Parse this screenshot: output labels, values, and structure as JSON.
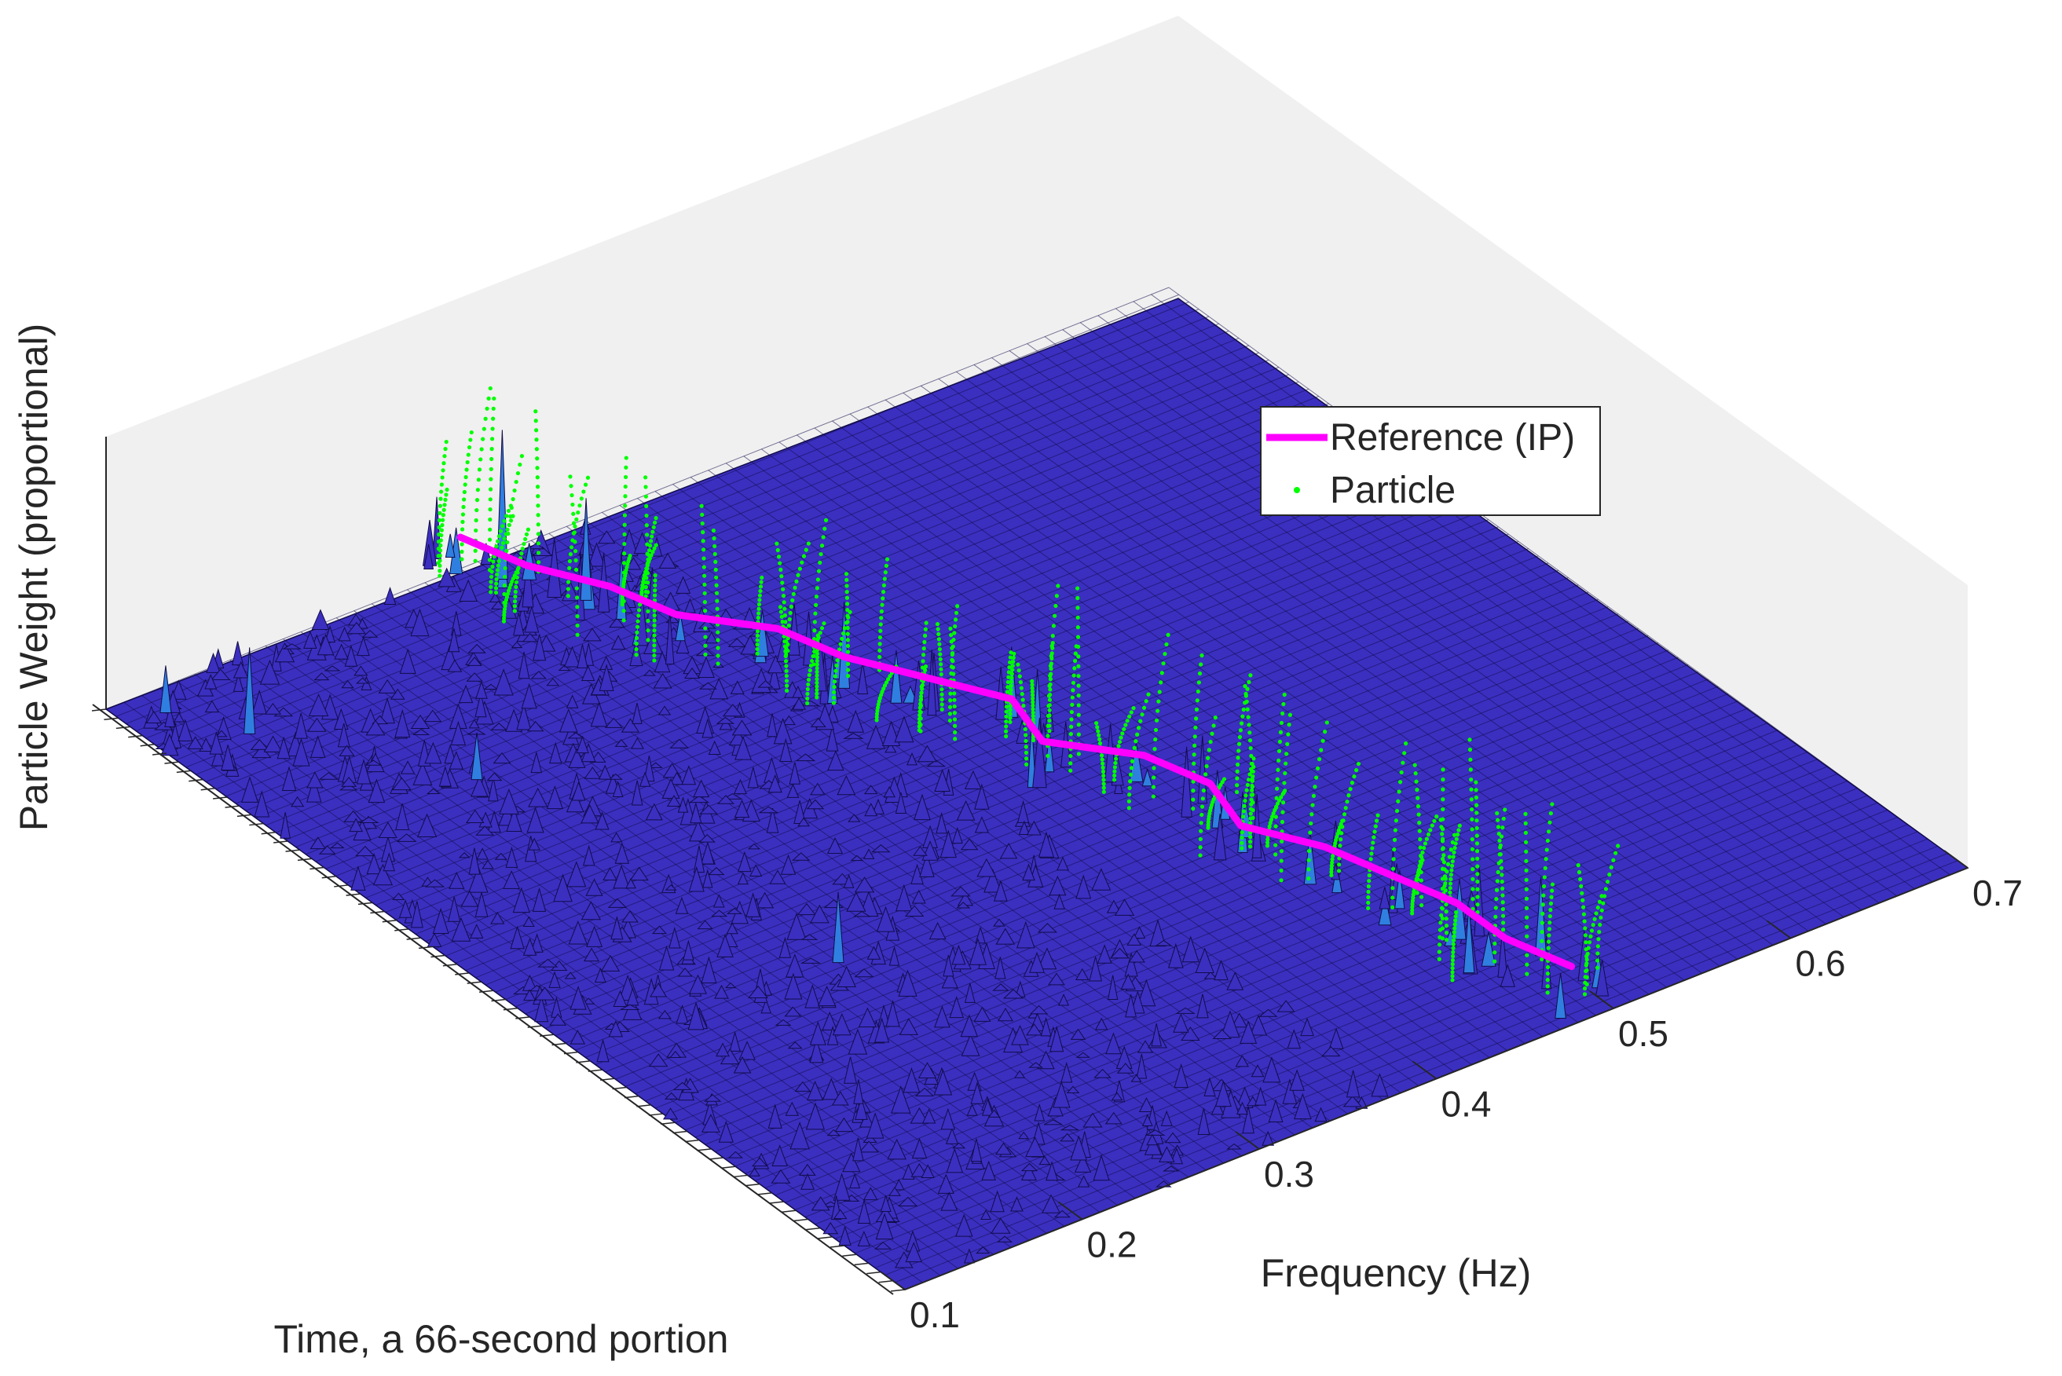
{
  "chart_data": {
    "type": "surface",
    "view": "3d",
    "xlabel": "Frequency (Hz)",
    "ylabel": "Time, a 66-second portion",
    "zlabel": "Particle Weight (proportional)",
    "x_ticks": [
      "0.1",
      "0.2",
      "0.3",
      "0.4",
      "0.5",
      "0.6",
      "0.7"
    ],
    "xlim": [
      0.1,
      0.7
    ],
    "ylim": [
      0,
      66
    ],
    "grid": true,
    "legend": {
      "placement": "inside-top-right",
      "entries": [
        {
          "label": "Reference (IP)",
          "style": "line",
          "color": "#ff00ff"
        },
        {
          "label": "Particle",
          "style": "marker",
          "color": "#00ff00"
        }
      ]
    },
    "series": [
      {
        "name": "Reference (IP)",
        "type": "line",
        "color": "#ff00ff",
        "points": [
          {
            "t": 66,
            "f": 0.3
          },
          {
            "t": 62,
            "f": 0.31
          },
          {
            "t": 58,
            "f": 0.33
          },
          {
            "t": 54,
            "f": 0.34
          },
          {
            "t": 50,
            "f": 0.37
          },
          {
            "t": 46,
            "f": 0.38
          },
          {
            "t": 42,
            "f": 0.4
          },
          {
            "t": 38,
            "f": 0.42
          },
          {
            "t": 34,
            "f": 0.41
          },
          {
            "t": 30,
            "f": 0.44
          },
          {
            "t": 26,
            "f": 0.45
          },
          {
            "t": 22,
            "f": 0.44
          },
          {
            "t": 18,
            "f": 0.46
          },
          {
            "t": 14,
            "f": 0.47
          },
          {
            "t": 10,
            "f": 0.48
          },
          {
            "t": 6,
            "f": 0.48
          },
          {
            "t": 2,
            "f": 0.49
          }
        ]
      },
      {
        "name": "Particle",
        "type": "scatter",
        "color": "#00ff00"
      }
    ],
    "colors": {
      "surface": "#3b2fc0",
      "surface_edge": "#120c4a",
      "peak": "#2f7fe0",
      "back_walls": "#f0f0f0",
      "reference": "#ff00ff",
      "particle": "#00ff00"
    }
  }
}
